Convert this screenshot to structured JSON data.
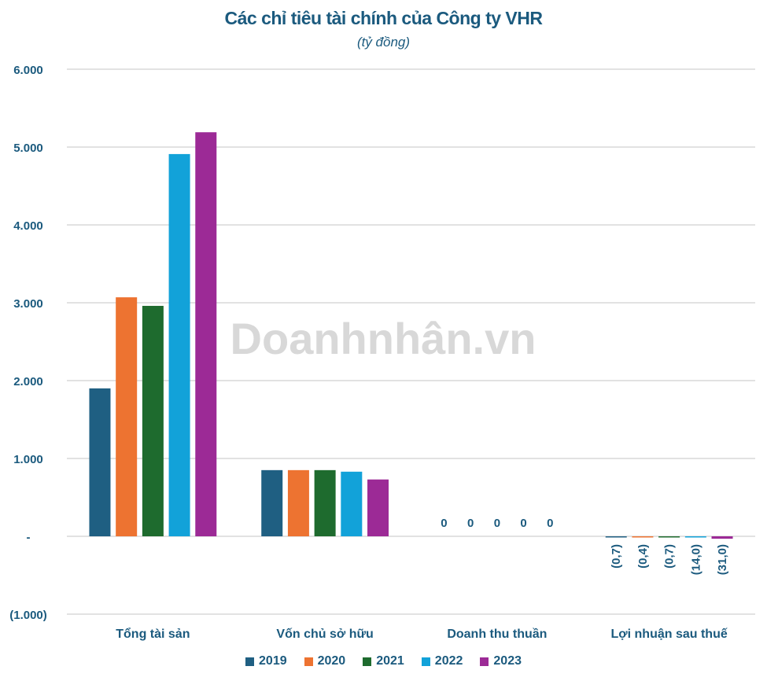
{
  "chart_data": {
    "type": "bar",
    "title": "Các chỉ tiêu tài chính của Công ty VHR",
    "subtitle": "(tỷ đồng)",
    "categories": [
      "Tổng tài sản",
      "Vốn chủ sở hữu",
      "Doanh thu thuần",
      "Lợi nhuận sau thuế"
    ],
    "series": [
      {
        "name": "2019",
        "color": "#1f5f82",
        "values": [
          1900,
          850,
          0,
          -0.7
        ]
      },
      {
        "name": "2020",
        "color": "#ed7331",
        "values": [
          3070,
          850,
          0,
          -0.4
        ]
      },
      {
        "name": "2021",
        "color": "#1e6b2e",
        "values": [
          2960,
          850,
          0,
          -0.7
        ]
      },
      {
        "name": "2022",
        "color": "#12a2d9",
        "values": [
          4910,
          830,
          0,
          -14.0
        ]
      },
      {
        "name": "2023",
        "color": "#9c2a96",
        "values": [
          5190,
          730,
          0,
          -31.0
        ]
      }
    ],
    "data_labels": [
      {
        "category": "Doanh thu thuần",
        "labels": [
          "0",
          "0",
          "0",
          "0",
          "0"
        ]
      },
      {
        "category": "Lợi nhuận sau thuế",
        "labels": [
          "(0,7)",
          "(0,4)",
          "(0,7)",
          "(14,0)",
          "(31,0)"
        ]
      }
    ],
    "ylim": [
      -1000,
      6000
    ],
    "yticks": [
      6000,
      5000,
      4000,
      3000,
      2000,
      1000,
      0,
      -1000
    ],
    "ytick_labels": [
      "6.000",
      "5.000",
      "4.000",
      "3.000",
      "2.000",
      "1.000",
      "-",
      "(1.000)"
    ],
    "grid": true,
    "legend": "bottom",
    "text_color": "#1b5a7e",
    "watermark": "Doanhnhân.vn"
  }
}
